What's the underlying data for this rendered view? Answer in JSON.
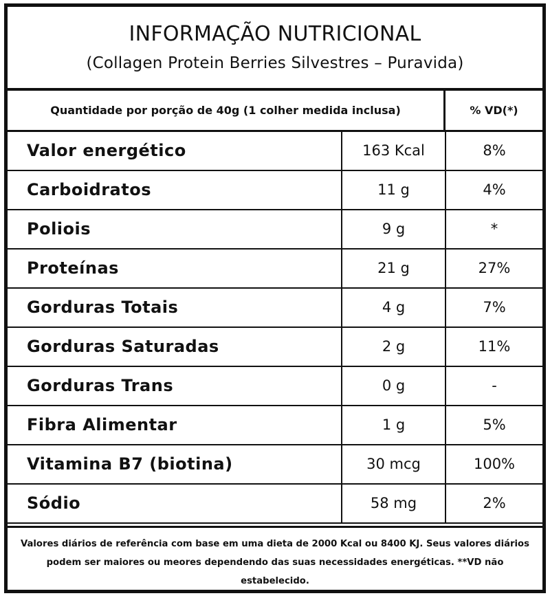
{
  "header": {
    "title": "INFORMAÇÃO NUTRICIONAL",
    "subtitle": "(Collagen Protein Berries Silvestres – Puravida)"
  },
  "columns": {
    "serving": "Quantidade por porção de 40g (1 colher medida inclusa)",
    "daily_value": "% VD(*)"
  },
  "rows": [
    {
      "name": "Valor energético",
      "amount": "163 Kcal",
      "dv": "8%"
    },
    {
      "name": "Carboidratos",
      "amount": "11 g",
      "dv": "4%"
    },
    {
      "name": "Poliois",
      "amount": "9 g",
      "dv": "*"
    },
    {
      "name": "Proteínas",
      "amount": "21 g",
      "dv": "27%"
    },
    {
      "name": "Gorduras Totais",
      "amount": "4 g",
      "dv": "7%"
    },
    {
      "name": "Gorduras Saturadas",
      "amount": "2 g",
      "dv": "11%"
    },
    {
      "name": "Gorduras Trans",
      "amount": "0 g",
      "dv": "-"
    },
    {
      "name": "Fibra Alimentar",
      "amount": "1 g",
      "dv": "5%"
    },
    {
      "name": "Vitamina B7 (biotina)",
      "amount": "30 mcg",
      "dv": "100%"
    },
    {
      "name": "Sódio",
      "amount": "58 mg",
      "dv": "2%"
    }
  ],
  "footnote": "Valores diários de referência com base em uma dieta de 2000 Kcal ou 8400 KJ. Seus valores diários podem ser maiores ou meores dependendo das suas necessidades energéticas. **VD não estabelecido."
}
